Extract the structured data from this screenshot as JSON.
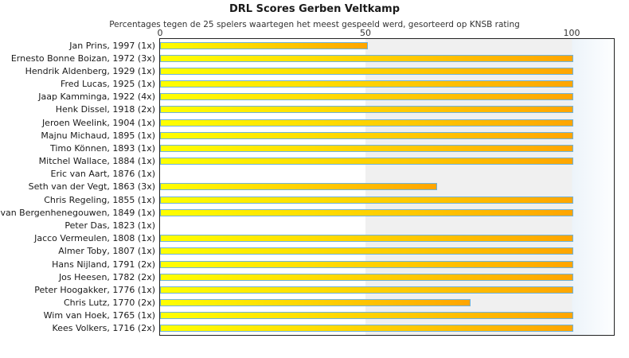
{
  "title": "DRL Scores Gerben Veltkamp",
  "subtitle": "Percentages tegen de 25 spelers waartegen het meest gespeeld werd, gesorteerd op KNSB rating",
  "chart_data": {
    "type": "bar",
    "orientation": "horizontal",
    "title": "DRL Scores Gerben Veltkamp",
    "subtitle": "Percentages tegen de 25 spelers waartegen het meest gespeeld werd, gesorteerd op KNSB rating",
    "xlabel": "",
    "ylabel": "",
    "xlim": [
      0,
      110
    ],
    "x_ticks": [
      0,
      50,
      100
    ],
    "grid": "band",
    "legend": false,
    "band_range": [
      50,
      100
    ],
    "band_color": "#f0f0f0",
    "bar_color_start": "#ffff00",
    "bar_color_end": "#ffa500",
    "bar_border_color": "#6fb3dc",
    "plot_border_color": "#222222",
    "categories": [
      "Jan Prins, 1997 (1x)",
      "Ernesto Bonne Boizan, 1972 (3x)",
      "Hendrik Aldenberg, 1929 (1x)",
      "Fred Lucas, 1925 (1x)",
      "Jaap Kamminga, 1922 (4x)",
      "Henk Dissel, 1918 (2x)",
      "Jeroen Weelink, 1904 (1x)",
      "Majnu Michaud, 1895 (1x)",
      "Timo Können, 1893 (1x)",
      "Mitchel Wallace, 1884 (1x)",
      "Eric van Aart, 1876 (1x)",
      "Seth van der Vegt, 1863 (3x)",
      "Chris Regeling, 1855 (1x)",
      "van Bergenhenegouwen, 1849 (1x)",
      "Peter Das, 1823 (1x)",
      "Jacco Vermeulen, 1808 (1x)",
      "Almer Toby, 1807 (1x)",
      "Hans Nijland, 1791 (2x)",
      "Jos Heesen, 1782 (2x)",
      "Peter Hoogakker, 1776 (1x)",
      "Chris Lutz, 1770 (2x)",
      "Wim van Hoek, 1765 (1x)",
      "Kees Volkers, 1716 (2x)"
    ],
    "values": [
      50,
      100,
      100,
      100,
      100,
      100,
      100,
      100,
      100,
      100,
      0,
      67,
      100,
      100,
      0,
      100,
      100,
      100,
      100,
      100,
      75,
      100,
      100
    ]
  }
}
